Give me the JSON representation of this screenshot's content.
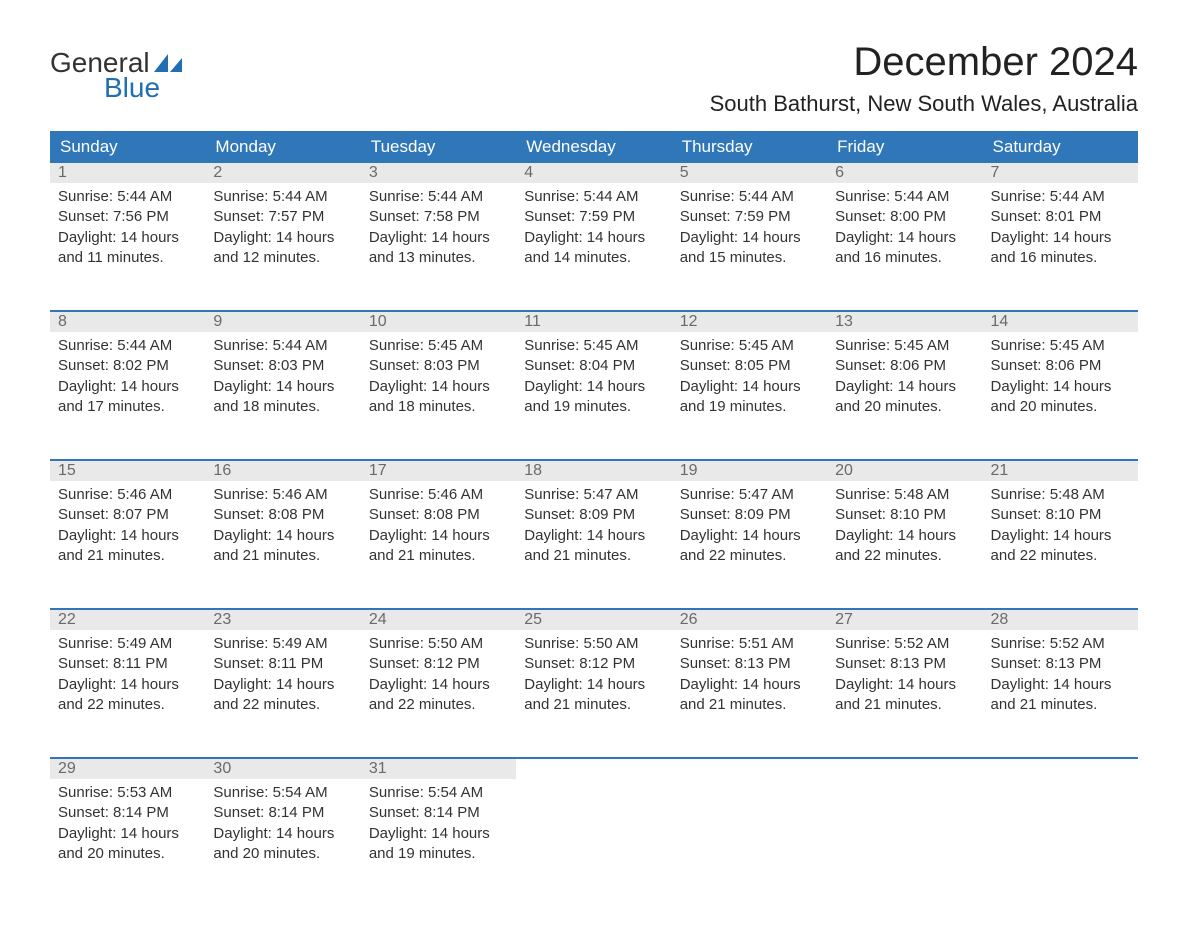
{
  "logo": {
    "line1": "General",
    "line2": "Blue",
    "accent_color": "#1f6fb2"
  },
  "title": "December 2024",
  "location": "South Bathurst, New South Wales, Australia",
  "colors": {
    "header_bg": "#2f77b8",
    "header_text": "#ffffff",
    "daynum_bg": "#e9e9e9",
    "daynum_text": "#6a6a6a",
    "body_text": "#333333",
    "rule": "#2f77b8"
  },
  "day_headers": [
    "Sunday",
    "Monday",
    "Tuesday",
    "Wednesday",
    "Thursday",
    "Friday",
    "Saturday"
  ],
  "weeks": [
    [
      {
        "n": "1",
        "sunrise": "Sunrise: 5:44 AM",
        "sunset": "Sunset: 7:56 PM",
        "daylight": "Daylight: 14 hours and 11 minutes."
      },
      {
        "n": "2",
        "sunrise": "Sunrise: 5:44 AM",
        "sunset": "Sunset: 7:57 PM",
        "daylight": "Daylight: 14 hours and 12 minutes."
      },
      {
        "n": "3",
        "sunrise": "Sunrise: 5:44 AM",
        "sunset": "Sunset: 7:58 PM",
        "daylight": "Daylight: 14 hours and 13 minutes."
      },
      {
        "n": "4",
        "sunrise": "Sunrise: 5:44 AM",
        "sunset": "Sunset: 7:59 PM",
        "daylight": "Daylight: 14 hours and 14 minutes."
      },
      {
        "n": "5",
        "sunrise": "Sunrise: 5:44 AM",
        "sunset": "Sunset: 7:59 PM",
        "daylight": "Daylight: 14 hours and 15 minutes."
      },
      {
        "n": "6",
        "sunrise": "Sunrise: 5:44 AM",
        "sunset": "Sunset: 8:00 PM",
        "daylight": "Daylight: 14 hours and 16 minutes."
      },
      {
        "n": "7",
        "sunrise": "Sunrise: 5:44 AM",
        "sunset": "Sunset: 8:01 PM",
        "daylight": "Daylight: 14 hours and 16 minutes."
      }
    ],
    [
      {
        "n": "8",
        "sunrise": "Sunrise: 5:44 AM",
        "sunset": "Sunset: 8:02 PM",
        "daylight": "Daylight: 14 hours and 17 minutes."
      },
      {
        "n": "9",
        "sunrise": "Sunrise: 5:44 AM",
        "sunset": "Sunset: 8:03 PM",
        "daylight": "Daylight: 14 hours and 18 minutes."
      },
      {
        "n": "10",
        "sunrise": "Sunrise: 5:45 AM",
        "sunset": "Sunset: 8:03 PM",
        "daylight": "Daylight: 14 hours and 18 minutes."
      },
      {
        "n": "11",
        "sunrise": "Sunrise: 5:45 AM",
        "sunset": "Sunset: 8:04 PM",
        "daylight": "Daylight: 14 hours and 19 minutes."
      },
      {
        "n": "12",
        "sunrise": "Sunrise: 5:45 AM",
        "sunset": "Sunset: 8:05 PM",
        "daylight": "Daylight: 14 hours and 19 minutes."
      },
      {
        "n": "13",
        "sunrise": "Sunrise: 5:45 AM",
        "sunset": "Sunset: 8:06 PM",
        "daylight": "Daylight: 14 hours and 20 minutes."
      },
      {
        "n": "14",
        "sunrise": "Sunrise: 5:45 AM",
        "sunset": "Sunset: 8:06 PM",
        "daylight": "Daylight: 14 hours and 20 minutes."
      }
    ],
    [
      {
        "n": "15",
        "sunrise": "Sunrise: 5:46 AM",
        "sunset": "Sunset: 8:07 PM",
        "daylight": "Daylight: 14 hours and 21 minutes."
      },
      {
        "n": "16",
        "sunrise": "Sunrise: 5:46 AM",
        "sunset": "Sunset: 8:08 PM",
        "daylight": "Daylight: 14 hours and 21 minutes."
      },
      {
        "n": "17",
        "sunrise": "Sunrise: 5:46 AM",
        "sunset": "Sunset: 8:08 PM",
        "daylight": "Daylight: 14 hours and 21 minutes."
      },
      {
        "n": "18",
        "sunrise": "Sunrise: 5:47 AM",
        "sunset": "Sunset: 8:09 PM",
        "daylight": "Daylight: 14 hours and 21 minutes."
      },
      {
        "n": "19",
        "sunrise": "Sunrise: 5:47 AM",
        "sunset": "Sunset: 8:09 PM",
        "daylight": "Daylight: 14 hours and 22 minutes."
      },
      {
        "n": "20",
        "sunrise": "Sunrise: 5:48 AM",
        "sunset": "Sunset: 8:10 PM",
        "daylight": "Daylight: 14 hours and 22 minutes."
      },
      {
        "n": "21",
        "sunrise": "Sunrise: 5:48 AM",
        "sunset": "Sunset: 8:10 PM",
        "daylight": "Daylight: 14 hours and 22 minutes."
      }
    ],
    [
      {
        "n": "22",
        "sunrise": "Sunrise: 5:49 AM",
        "sunset": "Sunset: 8:11 PM",
        "daylight": "Daylight: 14 hours and 22 minutes."
      },
      {
        "n": "23",
        "sunrise": "Sunrise: 5:49 AM",
        "sunset": "Sunset: 8:11 PM",
        "daylight": "Daylight: 14 hours and 22 minutes."
      },
      {
        "n": "24",
        "sunrise": "Sunrise: 5:50 AM",
        "sunset": "Sunset: 8:12 PM",
        "daylight": "Daylight: 14 hours and 22 minutes."
      },
      {
        "n": "25",
        "sunrise": "Sunrise: 5:50 AM",
        "sunset": "Sunset: 8:12 PM",
        "daylight": "Daylight: 14 hours and 21 minutes."
      },
      {
        "n": "26",
        "sunrise": "Sunrise: 5:51 AM",
        "sunset": "Sunset: 8:13 PM",
        "daylight": "Daylight: 14 hours and 21 minutes."
      },
      {
        "n": "27",
        "sunrise": "Sunrise: 5:52 AM",
        "sunset": "Sunset: 8:13 PM",
        "daylight": "Daylight: 14 hours and 21 minutes."
      },
      {
        "n": "28",
        "sunrise": "Sunrise: 5:52 AM",
        "sunset": "Sunset: 8:13 PM",
        "daylight": "Daylight: 14 hours and 21 minutes."
      }
    ],
    [
      {
        "n": "29",
        "sunrise": "Sunrise: 5:53 AM",
        "sunset": "Sunset: 8:14 PM",
        "daylight": "Daylight: 14 hours and 20 minutes."
      },
      {
        "n": "30",
        "sunrise": "Sunrise: 5:54 AM",
        "sunset": "Sunset: 8:14 PM",
        "daylight": "Daylight: 14 hours and 20 minutes."
      },
      {
        "n": "31",
        "sunrise": "Sunrise: 5:54 AM",
        "sunset": "Sunset: 8:14 PM",
        "daylight": "Daylight: 14 hours and 19 minutes."
      },
      null,
      null,
      null,
      null
    ]
  ]
}
